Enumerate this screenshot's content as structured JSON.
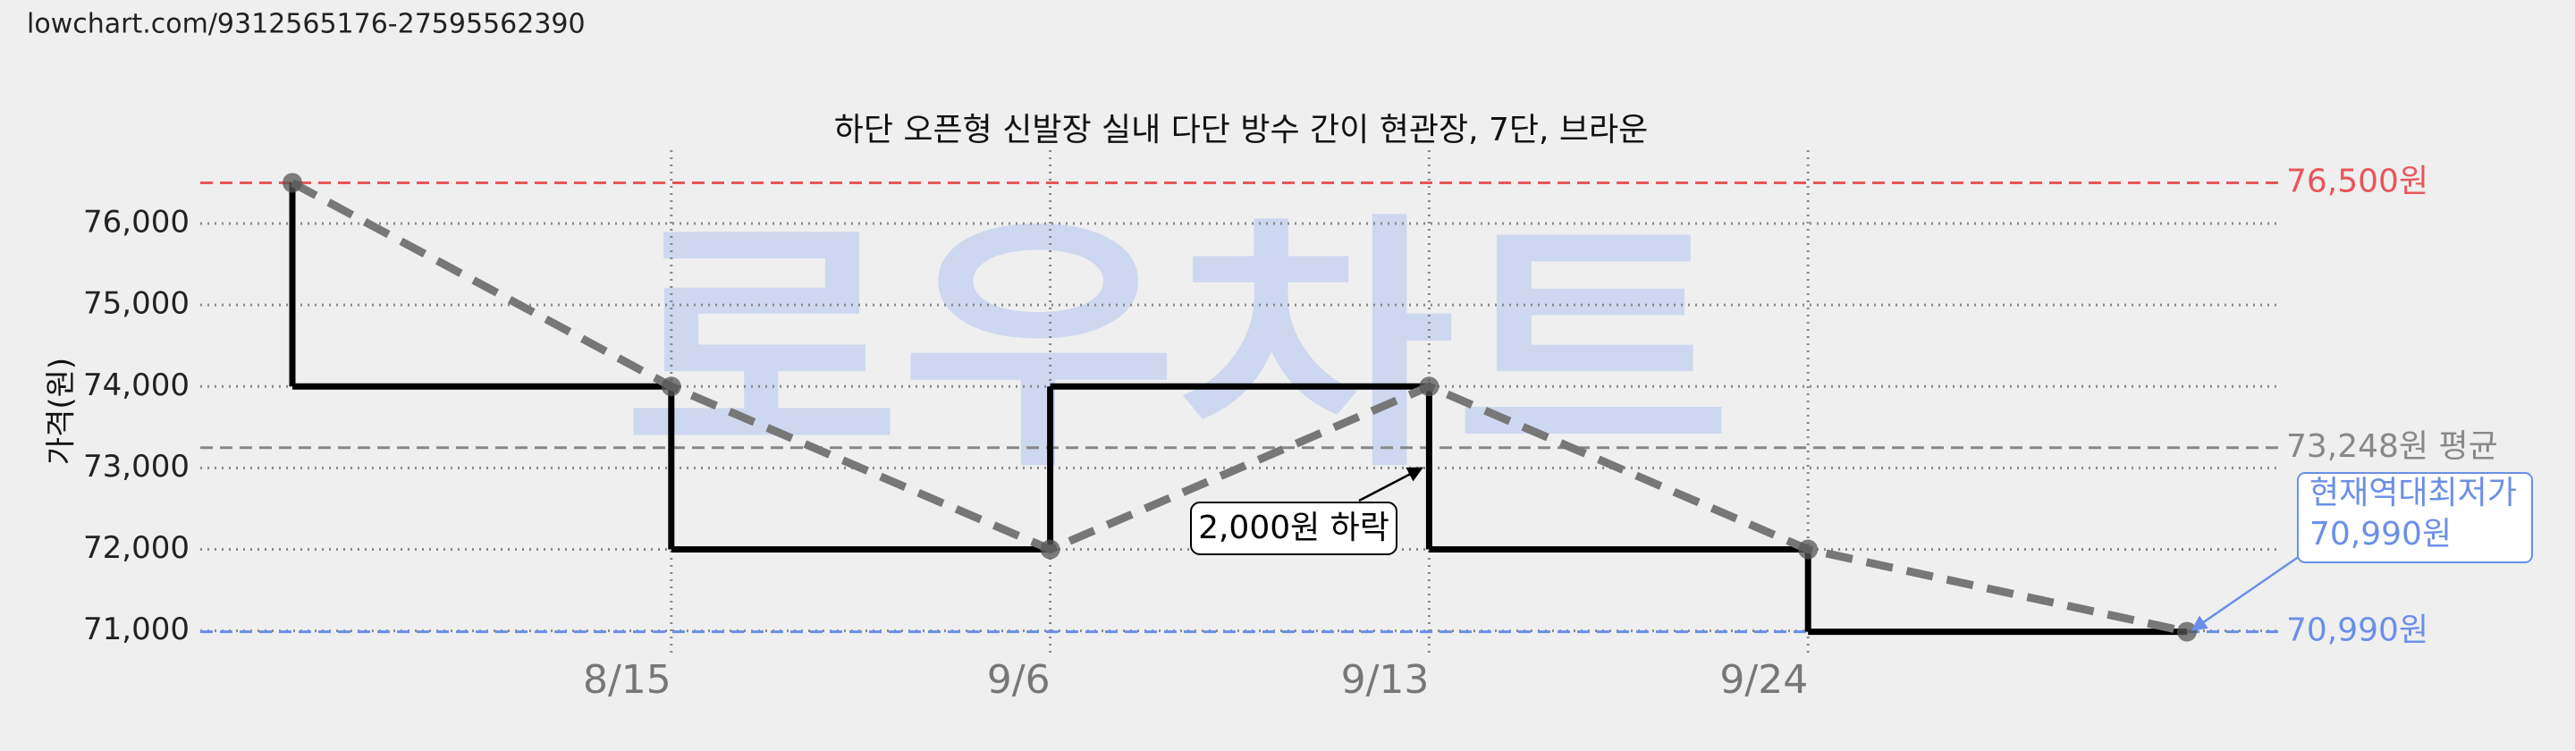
{
  "header": {
    "url": "lowchart.com/9312565176-27595562390"
  },
  "chart_data": {
    "type": "step",
    "title": "하단 오픈형 신발장 실내 다단 방수 간이 현관장, 7단, 브라운",
    "watermark": "로우차트",
    "y_label": "가격(원)",
    "categories": [
      null,
      "8/15",
      "9/6",
      "9/13",
      "9/24",
      null
    ],
    "values": [
      76500,
      74000,
      72000,
      74000,
      72000,
      70990
    ],
    "color": "#000000",
    "trend_color": "#777777",
    "ylim": [
      70700,
      76900
    ],
    "yticks": [
      {
        "value": 71000,
        "label": "71,000"
      },
      {
        "value": 72000,
        "label": "72,000"
      },
      {
        "value": 73000,
        "label": "73,000"
      },
      {
        "value": 74000,
        "label": "74,000"
      },
      {
        "value": 75000,
        "label": "75,000"
      },
      {
        "value": 76000,
        "label": "76,000"
      }
    ],
    "grid": true,
    "reference_lines": [
      {
        "value": 76500,
        "label": "76,500원",
        "color": "#e8555b"
      },
      {
        "value": 73248,
        "label": "73,248원 평균",
        "color": "#888888"
      },
      {
        "value": 70990,
        "label": "70,990원",
        "color": "#6b8fe8"
      }
    ],
    "annotations": [
      {
        "text": "2,000원 하락"
      }
    ],
    "lowest_note": {
      "lines": [
        "현재역대최저가",
        "70,990원"
      ],
      "color": "#6b8fe8"
    }
  }
}
